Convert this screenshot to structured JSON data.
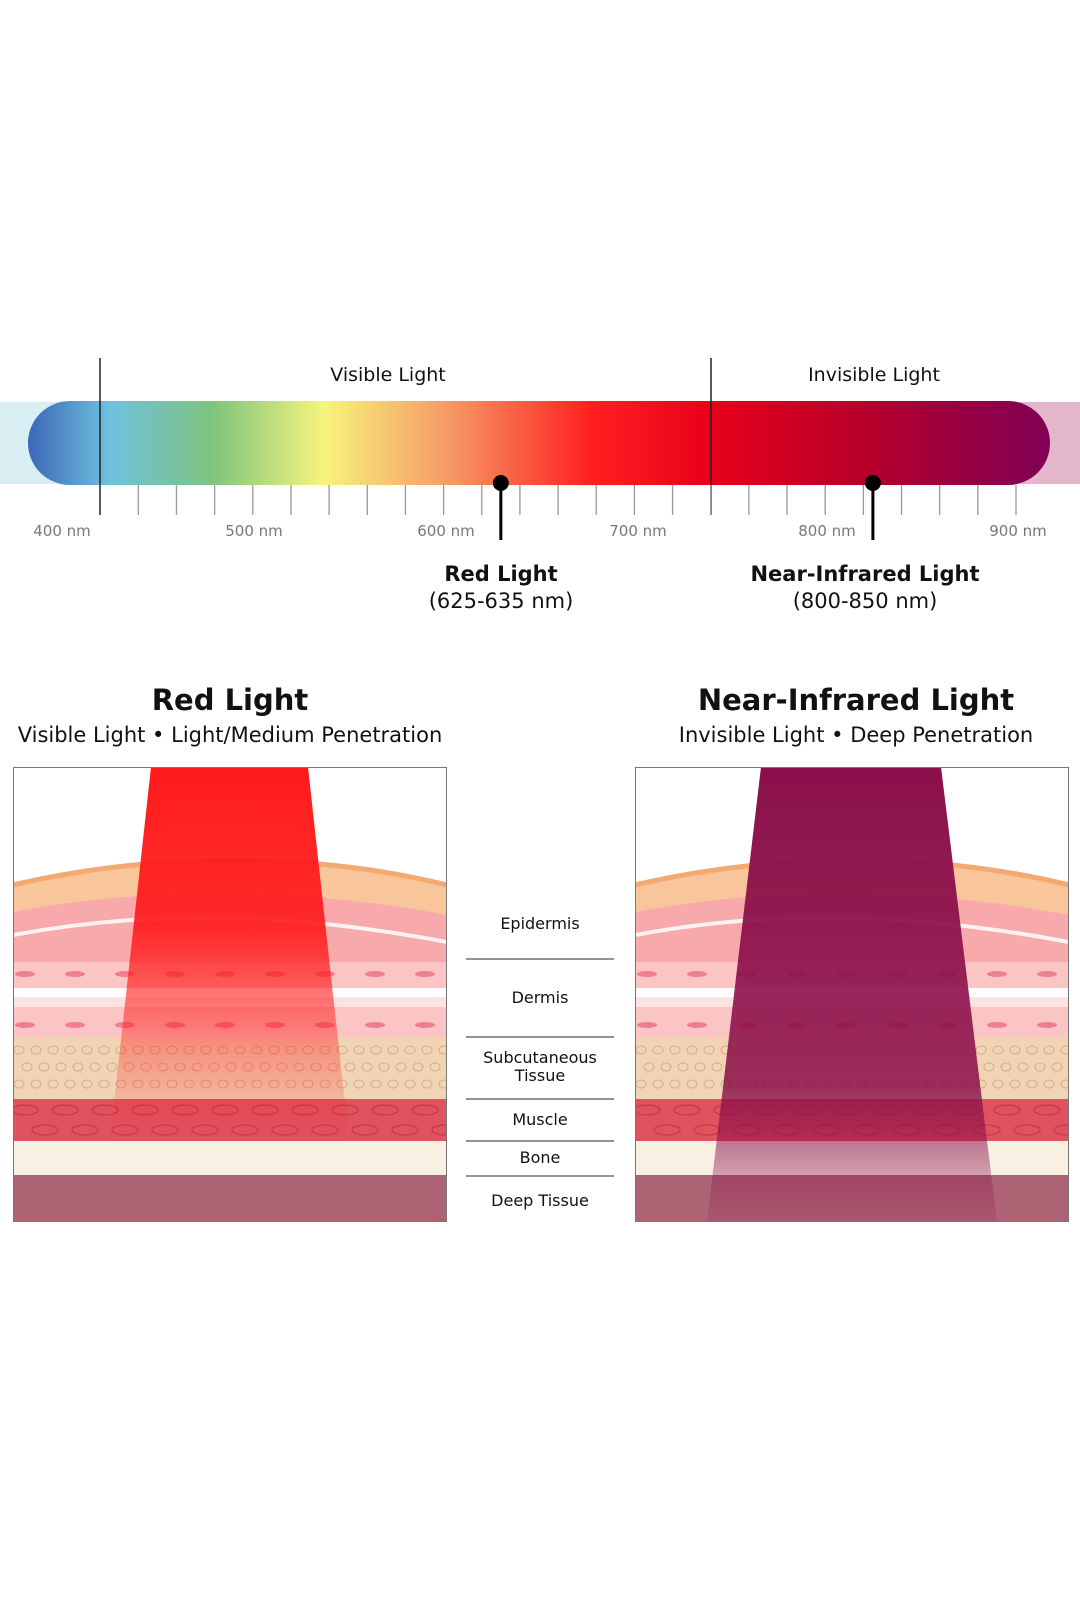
{
  "spectrum": {
    "regions": [
      {
        "label": "Visible Light"
      },
      {
        "label": "Invisible Light"
      }
    ],
    "tick_labels": [
      "400 nm",
      "500 nm",
      "600 nm",
      "700 nm",
      "800 nm",
      "900 nm"
    ],
    "axis_range_nm": [
      400,
      900
    ],
    "markers": [
      {
        "title": "Red Light",
        "range": "(625-635 nm)",
        "wavelength_nm": 630
      },
      {
        "title": "Near-Infrared Light",
        "range": "(800-850 nm)",
        "wavelength_nm": 825
      }
    ]
  },
  "panels": [
    {
      "title": "Red Light",
      "subtitle": "Visible Light • Light/Medium Penetration",
      "beam_color": "#ff1a1a",
      "penetration": "Muscle"
    },
    {
      "title": "Near-Infrared Light",
      "subtitle": "Invisible Light • Deep Penetration",
      "beam_color": "#8b0f4a",
      "penetration": "Deep Tissue"
    }
  ],
  "layers": [
    "Epidermis",
    "Dermis",
    "Subcutaneous Tissue",
    "Muscle",
    "Bone",
    "Deep Tissue"
  ],
  "colors": {
    "epidermis": "#f9c59a",
    "dermis": "#f7a9ab",
    "subcutaneous": "#f1d4b4",
    "muscle": "#e0525e",
    "bone": "#f8f1e3",
    "deep_tissue": "#ac6474"
  }
}
